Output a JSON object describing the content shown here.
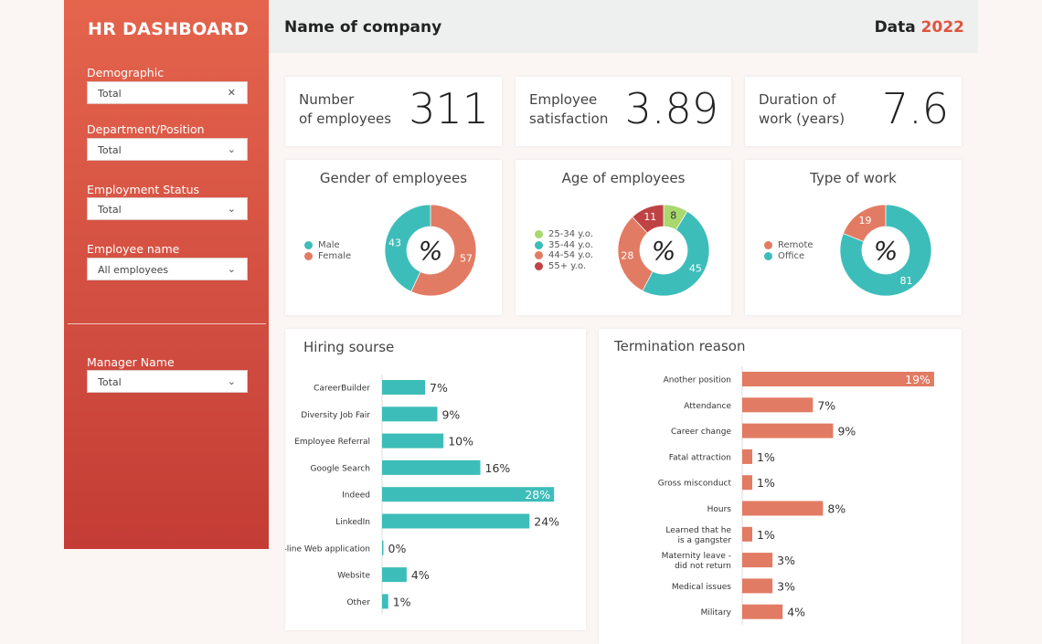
{
  "sidebar": {
    "title": "HR DASHBOARD",
    "filters": [
      {
        "label": "Demographic",
        "value": "Total",
        "icon": "close-icon"
      },
      {
        "label": "Department/Position",
        "value": "Total",
        "icon": "chevron-down-icon"
      },
      {
        "label": "Employment Status",
        "value": "Total",
        "icon": "chevron-down-icon"
      },
      {
        "label": "Employee name",
        "value": "All employees",
        "icon": "chevron-down-icon"
      },
      {
        "label": "Manager Name",
        "value": "Total",
        "icon": "chevron-down-icon"
      }
    ]
  },
  "header": {
    "company": "Name of company",
    "data_label": "Data",
    "year": "2022"
  },
  "kpis": [
    {
      "label1": "Number",
      "label2": "of employees",
      "value": "311"
    },
    {
      "label1": "Employee",
      "label2": "satisfaction",
      "value": "3.89"
    },
    {
      "label1": "Duration of",
      "label2": "work (years)",
      "value": "7.6"
    }
  ],
  "colors": {
    "accent": "#e0533d",
    "teal": "#3dbdb9",
    "coral": "#e27b63",
    "green": "#a8d86e",
    "darkred": "#bf4245"
  },
  "chart_data": [
    {
      "type": "pie",
      "title": "Gender of employees",
      "center": "%",
      "slices": [
        {
          "name": "Female",
          "value": 57,
          "color": "#e27b63"
        },
        {
          "name": "Male",
          "value": 43,
          "color": "#3dbdb9"
        }
      ],
      "legend": [
        "Male",
        "Female"
      ],
      "legend_colors": [
        "#3dbdb9",
        "#e27b63"
      ]
    },
    {
      "type": "pie",
      "title": "Age of employees",
      "center": "%",
      "slices": [
        {
          "name": "25-34 y.o.",
          "value": 8,
          "color": "#a8d86e"
        },
        {
          "name": "35-44 y.o.",
          "value": 45,
          "color": "#3dbdb9"
        },
        {
          "name": "44-54 y.o.",
          "value": 28,
          "color": "#e27b63"
        },
        {
          "name": "55+ y.o.",
          "value": 11,
          "color": "#bf4245"
        }
      ],
      "legend": [
        "25-34 y.o.",
        "35-44 y.o.",
        "44-54 y.o.",
        "55+ y.o."
      ],
      "legend_colors": [
        "#a8d86e",
        "#3dbdb9",
        "#e27b63",
        "#bf4245"
      ]
    },
    {
      "type": "pie",
      "title": "Type of work",
      "center": "%",
      "slices": [
        {
          "name": "Office",
          "value": 81,
          "color": "#3dbdb9"
        },
        {
          "name": "Remote",
          "value": 19,
          "color": "#e27b63"
        }
      ],
      "legend": [
        "Remote",
        "Office"
      ],
      "legend_colors": [
        "#e27b63",
        "#3dbdb9"
      ]
    },
    {
      "type": "bar",
      "orientation": "horizontal",
      "title": "Hiring sourse",
      "color": "#3dbdb9",
      "unit": "%",
      "categories": [
        "CareerBuilder",
        "Diversity Job Fair",
        "Employee Referral",
        "Google Search",
        "Indeed",
        "LinkedIn",
        "On-line Web application",
        "Website",
        "Other"
      ],
      "values": [
        7,
        9,
        10,
        16,
        28,
        24,
        0,
        4,
        1
      ]
    },
    {
      "type": "bar",
      "orientation": "horizontal",
      "title": "Termination reason",
      "color": "#e27b63",
      "unit": "%",
      "categories": [
        "Another position",
        "Attendance",
        "Career change",
        "Fatal attraction",
        "Gross misconduct",
        "Hours",
        "Learned that he is a gangster",
        "Maternity leave - did not return",
        "Medical issues",
        "Military"
      ],
      "values": [
        19,
        7,
        9,
        1,
        1,
        8,
        1,
        3,
        3,
        4
      ]
    }
  ]
}
